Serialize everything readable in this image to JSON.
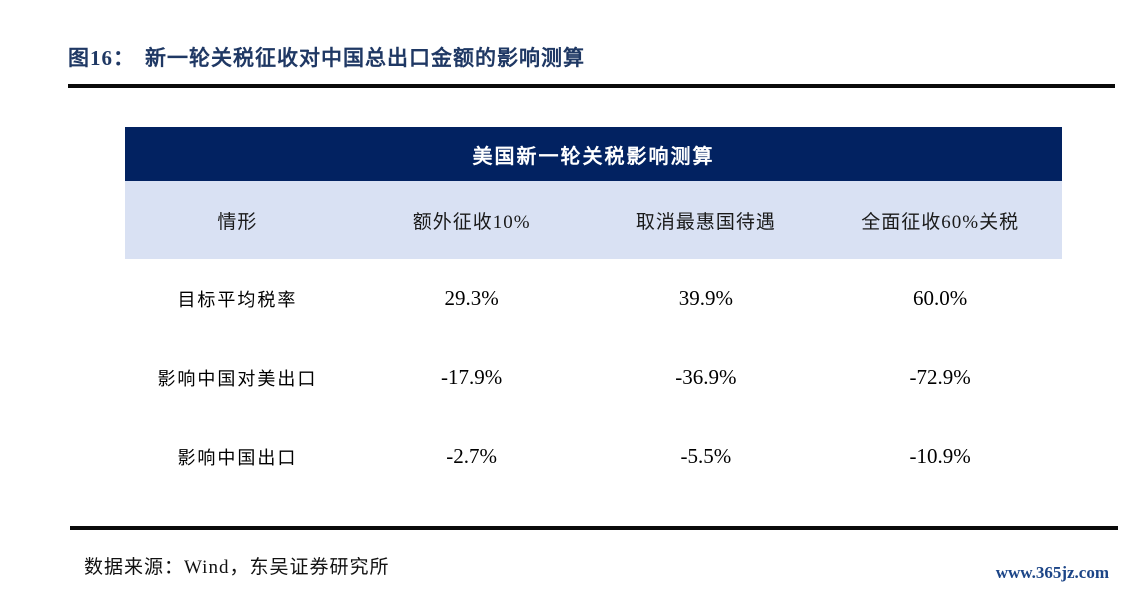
{
  "figure": {
    "label": "图16：",
    "title": "新一轮关税征收对中国总出口金额的影响测算"
  },
  "table": {
    "header": "美国新一轮关税影响测算",
    "columns": [
      "情形",
      "额外征收10%",
      "取消最惠国待遇",
      "全面征收60%关税"
    ],
    "rows": [
      {
        "label": "目标平均税率",
        "values": [
          "29.3%",
          "39.9%",
          "60.0%"
        ]
      },
      {
        "label": "影响中国对美出口",
        "values": [
          "-17.9%",
          "-36.9%",
          "-72.9%"
        ]
      },
      {
        "label": "影响中国出口",
        "values": [
          "-2.7%",
          "-5.5%",
          "-10.9%"
        ]
      }
    ]
  },
  "footer": {
    "source": "数据来源：Wind，东吴证券研究所",
    "watermark": "www.365jz.com"
  },
  "colors": {
    "header_bg": "#022261",
    "subheader_bg": "#d9e1f3",
    "title_text": "#1f3864",
    "rule": "#0a0a0a",
    "watermark_text": "#1c4587"
  },
  "chart_data": {
    "type": "table",
    "figure_caption": "图16：新一轮关税征收对中国总出口金额的影响测算",
    "title": "美国新一轮关税影响测算",
    "columns": [
      "情形",
      "额外征收10%",
      "取消最惠国待遇",
      "全面征收60%关税"
    ],
    "rows": [
      [
        "目标平均税率",
        "29.3%",
        "39.9%",
        "60.0%"
      ],
      [
        "影响中国对美出口",
        "-17.9%",
        "-36.9%",
        "-72.9%"
      ],
      [
        "影响中国出口",
        "-2.7%",
        "-5.5%",
        "-10.9%"
      ]
    ],
    "values_numeric_pct": {
      "目标平均税率": [
        29.3,
        39.9,
        60.0
      ],
      "影响中国对美出口": [
        -17.9,
        -36.9,
        -72.9
      ],
      "影响中国出口": [
        -2.7,
        -5.5,
        -10.9
      ]
    },
    "source": "数据来源：Wind，东吴证券研究所"
  }
}
